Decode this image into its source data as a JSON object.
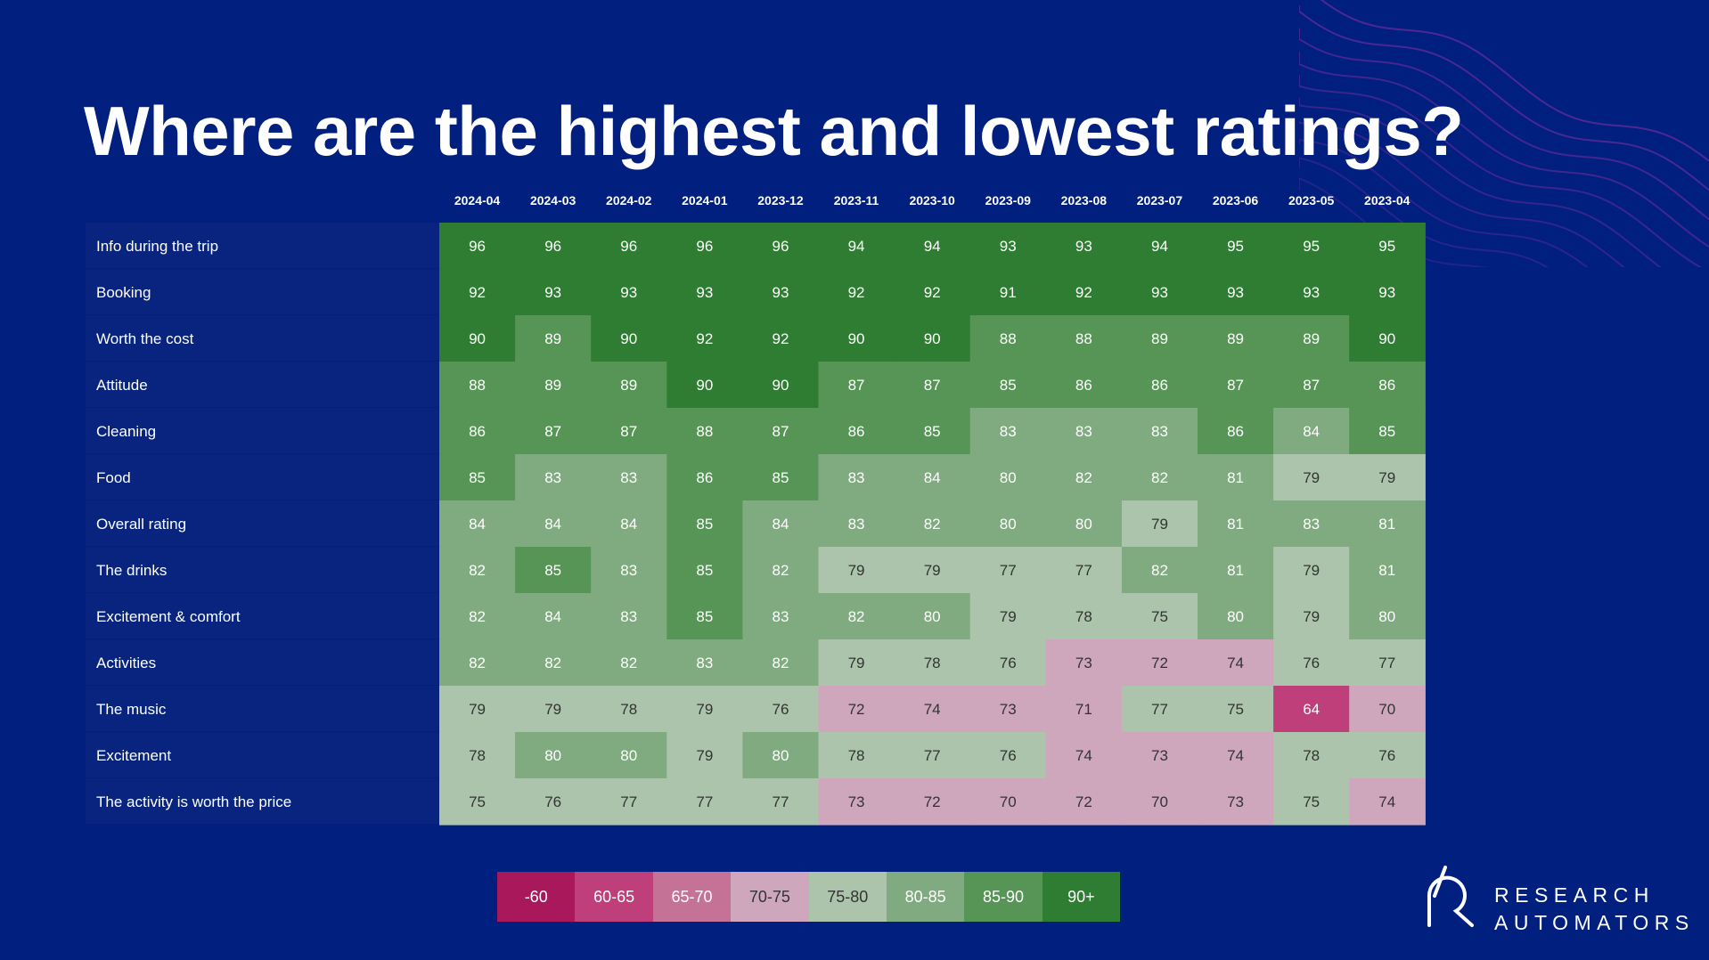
{
  "title": "Where are the highest and lowest ratings?",
  "chart_data": {
    "type": "heatmap",
    "title": "Where are the highest and lowest ratings?",
    "columns": [
      "2024-04",
      "2024-03",
      "2024-02",
      "2024-01",
      "2023-12",
      "2023-11",
      "2023-10",
      "2023-09",
      "2023-08",
      "2023-07",
      "2023-06",
      "2023-05",
      "2023-04"
    ],
    "rows": [
      "Info during the trip",
      "Booking",
      "Worth the cost",
      "Attitude",
      "Cleaning",
      "Food",
      "Overall rating",
      "The drinks",
      "Excitement & comfort",
      "Activities",
      "The music",
      "Excitement",
      "The activity is worth the price"
    ],
    "values": [
      [
        96,
        96,
        96,
        96,
        96,
        94,
        94,
        93,
        93,
        94,
        95,
        95,
        95
      ],
      [
        92,
        93,
        93,
        93,
        93,
        92,
        92,
        91,
        92,
        93,
        93,
        93,
        93
      ],
      [
        90,
        89,
        90,
        92,
        92,
        90,
        90,
        88,
        88,
        89,
        89,
        89,
        90
      ],
      [
        88,
        89,
        89,
        90,
        90,
        87,
        87,
        85,
        86,
        86,
        87,
        87,
        86
      ],
      [
        86,
        87,
        87,
        88,
        87,
        86,
        85,
        83,
        83,
        83,
        86,
        84,
        85
      ],
      [
        85,
        83,
        83,
        86,
        85,
        83,
        84,
        80,
        82,
        82,
        81,
        79,
        79
      ],
      [
        84,
        84,
        84,
        85,
        84,
        83,
        82,
        80,
        80,
        79,
        81,
        83,
        81
      ],
      [
        82,
        85,
        83,
        85,
        82,
        79,
        79,
        77,
        77,
        82,
        81,
        79,
        81
      ],
      [
        82,
        84,
        83,
        85,
        83,
        82,
        80,
        79,
        78,
        75,
        80,
        79,
        80
      ],
      [
        82,
        82,
        82,
        83,
        82,
        79,
        78,
        76,
        73,
        72,
        74,
        76,
        77
      ],
      [
        79,
        79,
        78,
        79,
        76,
        72,
        74,
        73,
        71,
        77,
        75,
        64,
        70
      ],
      [
        78,
        80,
        80,
        79,
        80,
        78,
        77,
        76,
        74,
        73,
        74,
        78,
        76
      ],
      [
        75,
        76,
        77,
        77,
        77,
        73,
        72,
        70,
        72,
        70,
        73,
        75,
        74
      ]
    ],
    "color_bands": {
      "-60": "#a8185a",
      "60-65": "#bf3f7a",
      "65-70": "#c47397",
      "70-75": "#cfa7bd",
      "75-80": "#acc4ac",
      "80-85": "#80aa80",
      "85-90": "#579557",
      "90+": "#2f7d32"
    }
  },
  "legend": [
    {
      "label": "-60",
      "color": "#a8185a",
      "text_color": "#ffffff"
    },
    {
      "label": "60-65",
      "color": "#bf3f7a",
      "text_color": "#ffffff"
    },
    {
      "label": "65-70",
      "color": "#c47397",
      "text_color": "#ffffff"
    },
    {
      "label": "70-75",
      "color": "#cfa7bd",
      "text_color": "#333333"
    },
    {
      "label": "75-80",
      "color": "#acc4ac",
      "text_color": "#333333"
    },
    {
      "label": "80-85",
      "color": "#80aa80",
      "text_color": "#ffffff"
    },
    {
      "label": "85-90",
      "color": "#579557",
      "text_color": "#ffffff"
    },
    {
      "label": "90+",
      "color": "#2f7d32",
      "text_color": "#ffffff"
    }
  ],
  "logo": {
    "line1": "RESEARCH",
    "line2": "AUTOMATORS"
  },
  "colors": {
    "background": "#001f7e",
    "row_label_band": "#08247f",
    "wave": "#5b2a9a"
  }
}
